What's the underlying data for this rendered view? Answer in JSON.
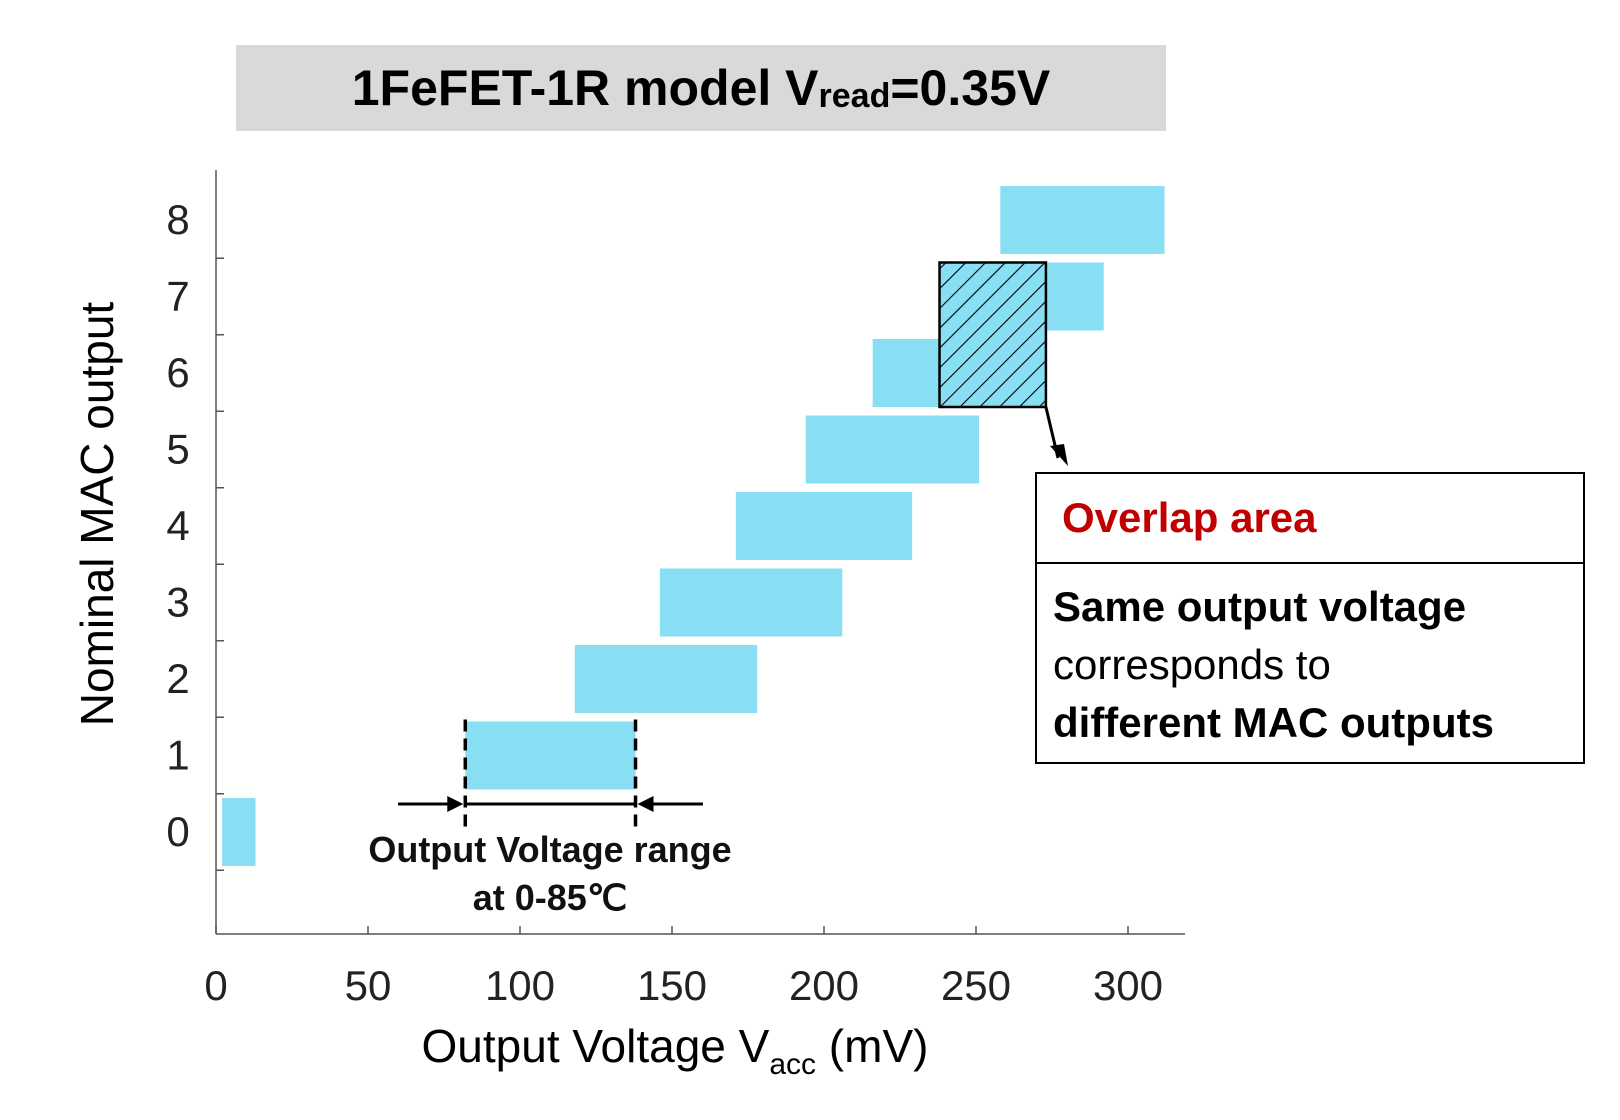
{
  "title": {
    "main": "1FeFET-1R model  V",
    "sub": "read",
    "tail": "=0.35V"
  },
  "chart_data": {
    "type": "bar",
    "orientation": "horizontal-range",
    "title": "1FeFET-1R model Vread=0.35V",
    "xlabel_main": "Output Voltage V",
    "xlabel_sub": "acc",
    "xlabel_tail": " (mV)",
    "ylabel": "Nominal MAC output",
    "xlim": [
      0,
      320
    ],
    "ylim": [
      -1,
      9
    ],
    "x_ticks": [
      "0",
      "50",
      "100",
      "150",
      "200",
      "250",
      "300"
    ],
    "x_tick_values": [
      0,
      50,
      100,
      150,
      200,
      250,
      300
    ],
    "y_ticks": [
      "0",
      "1",
      "2",
      "3",
      "4",
      "5",
      "6",
      "7",
      "8"
    ],
    "y_tick_values": [
      0,
      1,
      2,
      3,
      4,
      5,
      6,
      7,
      8
    ],
    "series": [
      {
        "name": "Output voltage range at 0-85℃",
        "color": "#88def3",
        "ranges": [
          {
            "mac": 0,
            "min": 2,
            "max": 13
          },
          {
            "mac": 1,
            "min": 82,
            "max": 138
          },
          {
            "mac": 2,
            "min": 118,
            "max": 178
          },
          {
            "mac": 3,
            "min": 146,
            "max": 206
          },
          {
            "mac": 4,
            "min": 171,
            "max": 229
          },
          {
            "mac": 5,
            "min": 194,
            "max": 251
          },
          {
            "mac": 6,
            "min": 216,
            "max": 273
          },
          {
            "mac": 7,
            "min": 238,
            "max": 292
          },
          {
            "mac": 8,
            "min": 258,
            "max": 312
          }
        ]
      }
    ],
    "overlap_region": {
      "x_min": 238,
      "x_max": 273,
      "mac_min": 6,
      "mac_max": 7
    },
    "range_annotation": {
      "line1": "Output Voltage range",
      "line2": "at 0-85℃",
      "x_min": 82,
      "x_max": 138,
      "mac": 1
    }
  },
  "callout": {
    "heading": "Overlap area",
    "line1": "Same output voltage",
    "line2": "corresponds to",
    "line3": "different MAC outputs",
    "heading_color": "#c00000"
  }
}
